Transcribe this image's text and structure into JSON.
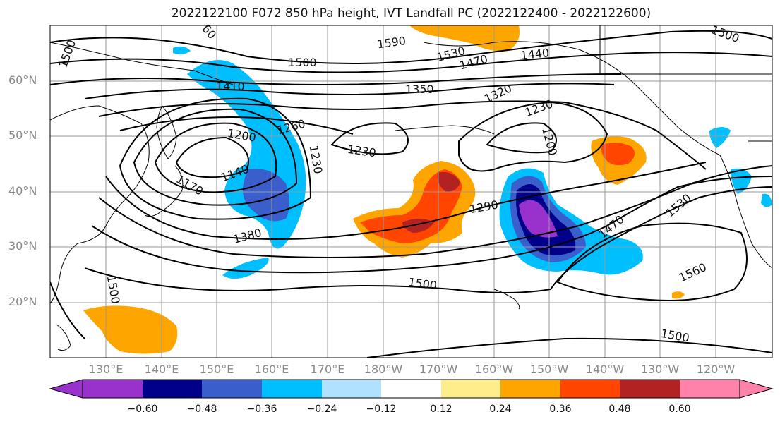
{
  "title": "2022122100 F072 850 hPa height, IVT Landfall PC (2022122400 - 2022122600)",
  "map": {
    "lat_labels": [
      "60°N",
      "50°N",
      "40°N",
      "30°N",
      "20°N"
    ],
    "lon_labels": [
      "130°E",
      "140°E",
      "150°E",
      "160°E",
      "170°E",
      "180°W",
      "170°W",
      "160°W",
      "150°W",
      "140°W",
      "130°W",
      "120°W"
    ],
    "contour_labels": [
      "1500",
      "1500",
      "1590",
      "1530",
      "1470",
      "1440",
      "1500",
      "1410",
      "1350",
      "1320",
      "1230",
      "1260",
      "1200",
      "1230",
      "1230",
      "1200",
      "1140",
      "1170",
      "1290",
      "1470",
      "1530",
      "1380",
      "1560",
      "1500",
      "1500",
      "1500",
      "60"
    ],
    "colors": {
      "coast": "#000000",
      "grid": "#9a9a9a",
      "contour": "#000000"
    }
  },
  "colorbar": {
    "ticks": [
      "−0.60",
      "−0.48",
      "−0.36",
      "−0.24",
      "−0.12",
      "0.12",
      "0.24",
      "0.36",
      "0.48",
      "0.60"
    ],
    "colors": [
      "#9932cc",
      "#00008b",
      "#3a5fcd",
      "#00bfff",
      "#b0e2ff",
      "#ffffff",
      "#ffec8b",
      "#ffa500",
      "#ff4500",
      "#b22222",
      "#ff82ab"
    ]
  }
}
